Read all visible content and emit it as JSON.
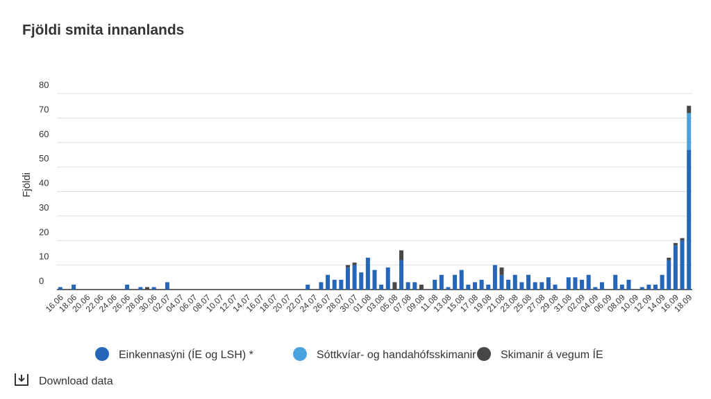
{
  "chart_data": {
    "type": "stacked-bar",
    "title": "Fjöldi smita innanlands",
    "y_label": "Fjöldi",
    "categories": [
      "16.06",
      null,
      "18.06",
      null,
      "20.06",
      null,
      "22.06",
      null,
      "24.06",
      null,
      "26.06",
      null,
      "28.06",
      null,
      "30.06",
      null,
      "02.07",
      null,
      "04.07",
      null,
      "06.07",
      null,
      "08.07",
      null,
      "10.07",
      null,
      "12.07",
      null,
      "14.07",
      null,
      "16.07",
      null,
      "18.07",
      null,
      "20.07",
      null,
      "22.07",
      null,
      "24.07",
      null,
      "26.07",
      null,
      "28.07",
      null,
      "30.07",
      null,
      "01.08",
      null,
      "03.08",
      null,
      "05.08",
      null,
      "07.08",
      null,
      "09.08",
      null,
      "11.08",
      null,
      "13.08",
      null,
      "15.08",
      null,
      "17.08",
      null,
      "19.08",
      null,
      "21.08",
      null,
      "23.08",
      null,
      "25.08",
      null,
      "27.08",
      null,
      "29.08",
      null,
      "31.08",
      null,
      "02.09",
      null,
      "04.09",
      null,
      "06.09",
      null,
      "08.09",
      null,
      "10.09",
      null,
      "12.09",
      null,
      "14.09",
      null,
      "16.09",
      null,
      "18.09"
    ],
    "series": [
      {
        "name": "Einkennasýni (ÍE og LSH) *",
        "color": "#2566b8",
        "values": [
          1,
          0,
          2,
          0,
          0,
          0,
          0,
          0,
          0,
          0,
          2,
          0,
          1,
          0,
          1,
          0,
          3,
          0,
          0,
          0,
          0,
          0,
          0,
          0,
          0,
          0,
          0,
          0,
          0,
          0,
          0,
          0,
          0,
          0,
          0,
          0,
          0,
          2,
          0,
          3,
          6,
          4,
          4,
          9,
          10,
          7,
          13,
          8,
          2,
          9,
          0,
          12,
          3,
          3,
          0,
          0,
          4,
          6,
          1,
          6,
          8,
          2,
          3,
          4,
          2,
          10,
          6,
          4,
          6,
          3,
          6,
          3,
          3,
          5,
          2,
          0,
          5,
          5,
          4,
          6,
          1,
          3,
          0,
          6,
          2,
          4,
          0,
          1,
          2,
          2,
          6,
          12,
          18,
          20,
          57
        ]
      },
      {
        "name": "Sóttkvíar- og handahófsskimanir",
        "color": "#4aa3df",
        "values": [
          0,
          0,
          0,
          0,
          0,
          0,
          0,
          0,
          0,
          0,
          0,
          0,
          0,
          0,
          0,
          0,
          0,
          0,
          0,
          0,
          0,
          0,
          0,
          0,
          0,
          0,
          0,
          0,
          0,
          0,
          0,
          0,
          0,
          0,
          0,
          0,
          0,
          0,
          0,
          0,
          0,
          0,
          0,
          0,
          0,
          0,
          0,
          0,
          0,
          0,
          0,
          0,
          0,
          0,
          0,
          0,
          0,
          0,
          0,
          0,
          0,
          0,
          0,
          0,
          0,
          0,
          0,
          0,
          0,
          0,
          0,
          0,
          0,
          0,
          0,
          0,
          0,
          0,
          0,
          0,
          0,
          0,
          0,
          0,
          0,
          0,
          0,
          0,
          0,
          0,
          0,
          0,
          0,
          0,
          15
        ]
      },
      {
        "name": "Skimanir á vegum ÍE",
        "color": "#474747",
        "values": [
          0,
          0,
          0,
          0,
          0,
          0,
          0,
          0,
          0,
          0,
          0,
          0,
          0,
          1,
          0,
          0,
          0,
          0,
          0,
          0,
          0,
          0,
          0,
          0,
          0,
          0,
          0,
          0,
          0,
          0,
          0,
          0,
          0,
          0,
          0,
          0,
          0,
          0,
          0,
          0,
          0,
          0,
          0,
          1,
          1,
          0,
          0,
          0,
          0,
          0,
          3,
          4,
          0,
          0,
          2,
          0,
          0,
          0,
          0,
          0,
          0,
          0,
          0,
          0,
          0,
          0,
          3,
          0,
          0,
          0,
          0,
          0,
          0,
          0,
          0,
          0,
          0,
          0,
          0,
          0,
          0,
          0,
          0,
          0,
          0,
          0,
          0,
          0,
          0,
          0,
          0,
          1,
          1,
          1,
          3
        ]
      }
    ],
    "ylim": [
      0,
      80
    ],
    "yticks": [
      0,
      10,
      20,
      30,
      40,
      50,
      60,
      70,
      80
    ],
    "grid": true,
    "legend": "bottom"
  },
  "download": "Download data"
}
